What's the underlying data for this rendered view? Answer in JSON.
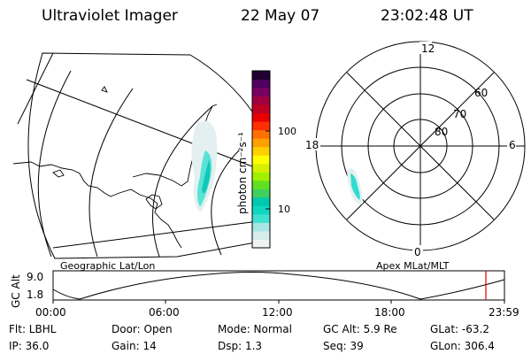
{
  "header": {
    "title": "Ultraviolet Imager",
    "date": "22 May 07",
    "time": "23:02:48 UT"
  },
  "map_labels": {
    "geographic": "Geographic Lat/Lon",
    "apex": "Apex MLat/MLT"
  },
  "colorbar": {
    "label": "photon cm⁻²s⁻¹",
    "ticks": [
      "100",
      "10"
    ],
    "colors": [
      "#eef4f4",
      "#d6ecec",
      "#a8e6e6",
      "#40e0d0",
      "#10d8c0",
      "#00c8b0",
      "#40d060",
      "#60e020",
      "#a0f000",
      "#d8f000",
      "#ffff00",
      "#ffd000",
      "#ffa000",
      "#ff7000",
      "#ff3000",
      "#e80000",
      "#c00020",
      "#a00040",
      "#780060",
      "#500060",
      "#200030"
    ]
  },
  "polar": {
    "mlt_labels": {
      "top": "12",
      "left": "18",
      "right": "6",
      "bottom": "0"
    },
    "lat_labels": [
      "60",
      "70",
      "80"
    ]
  },
  "altitude": {
    "label": "GC Alt",
    "ticks": [
      "9.0",
      "1.8"
    ],
    "time_ticks": [
      "00:00",
      "06:00",
      "12:00",
      "18:00",
      "23:59"
    ]
  },
  "info": {
    "col1": [
      "Flt: LBHL",
      "IP: 36.0"
    ],
    "col2": [
      "Door: Open",
      "Gain: 14"
    ],
    "col3": [
      "Mode: Normal",
      "Dsp:    1.3"
    ],
    "col4": [
      "GC Alt: 5.9 Re",
      "Seq: 39"
    ],
    "col5": [
      "GLat: -63.2",
      "GLon: 306.4"
    ]
  }
}
